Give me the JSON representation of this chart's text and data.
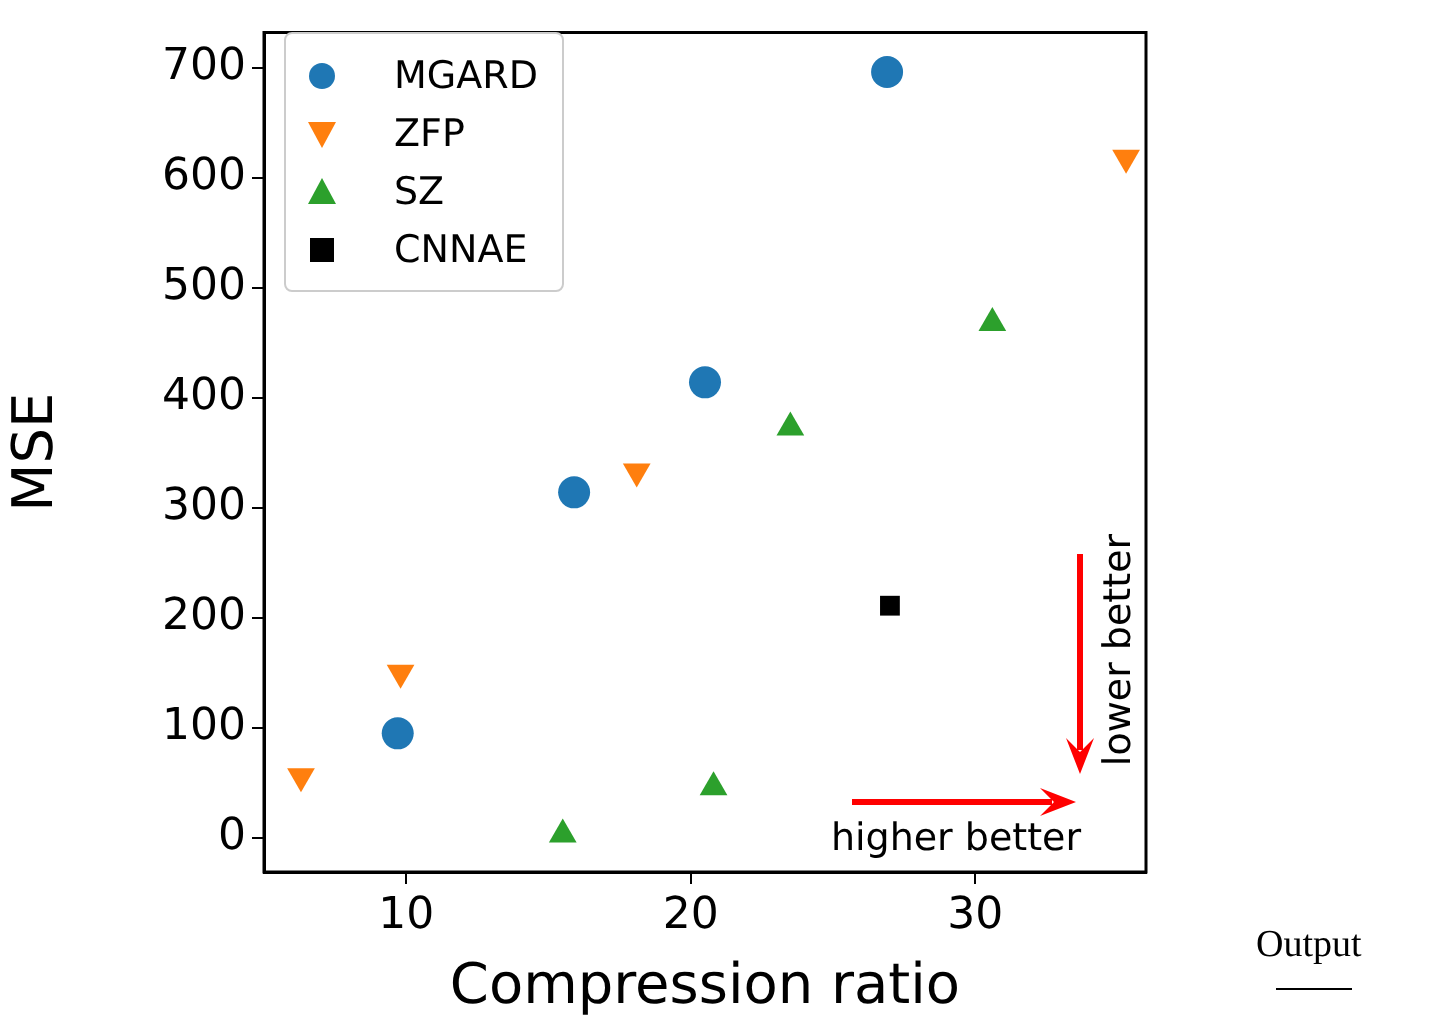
{
  "chart_data": {
    "type": "scatter",
    "xlabel": "Compression ratio",
    "ylabel": "MSE",
    "xlim": [
      5,
      36
    ],
    "xticks": [
      10,
      20,
      30
    ],
    "ylim": [
      -31,
      732
    ],
    "yticks": [
      0,
      100,
      200,
      300,
      400,
      500,
      600,
      700
    ],
    "grid": false,
    "legend": "top left",
    "series": [
      {
        "name": "MGARD",
        "color": "#1f77b4",
        "marker": "circle",
        "x": [
          9.7,
          15.9,
          20.5,
          26.9
        ],
        "values": [
          95,
          314,
          414,
          696
        ]
      },
      {
        "name": "ZFP",
        "color": "#ff7f0e",
        "marker": "triangle_down",
        "x": [
          6.3,
          9.8,
          18.1,
          35.3
        ],
        "values": [
          56,
          150,
          333,
          618
        ]
      },
      {
        "name": "SZ",
        "color": "#2ca02c",
        "marker": "triangle",
        "x": [
          15.5,
          20.8,
          23.5,
          30.6
        ],
        "values": [
          3,
          46,
          373,
          468
        ]
      },
      {
        "name": "CNNAE",
        "color": "#000000",
        "marker": "square",
        "x": [
          27.0
        ],
        "values": [
          211
        ]
      }
    ],
    "annotations": [
      "higher better",
      "lower better",
      "Output"
    ]
  }
}
